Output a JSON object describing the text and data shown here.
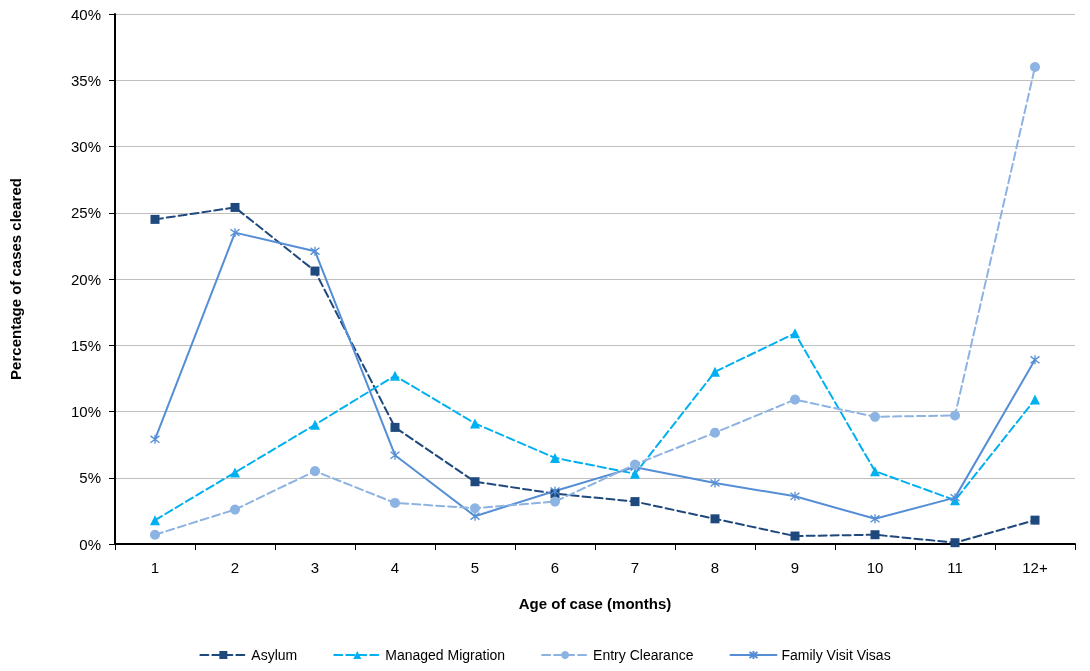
{
  "chart_data": {
    "type": "line",
    "xlabel": "Age of case (months)",
    "ylabel": "Percentage of cases cleared",
    "categories": [
      "1",
      "2",
      "3",
      "4",
      "5",
      "6",
      "7",
      "8",
      "9",
      "10",
      "11",
      "12+"
    ],
    "ylim": [
      0,
      40
    ],
    "yticks": [
      {
        "value": 0,
        "label": "0%"
      },
      {
        "value": 5,
        "label": "5%"
      },
      {
        "value": 10,
        "label": "10%"
      },
      {
        "value": 15,
        "label": "15%"
      },
      {
        "value": 20,
        "label": "20%"
      },
      {
        "value": 25,
        "label": "25%"
      },
      {
        "value": 30,
        "label": "30%"
      },
      {
        "value": 35,
        "label": "35%"
      },
      {
        "value": 40,
        "label": "40%"
      }
    ],
    "grid": "y",
    "legend": "bottom",
    "series": [
      {
        "name": "Asylum",
        "color": "#1f497d",
        "marker": "square",
        "line_style": "dashed",
        "values": [
          24.5,
          25.4,
          20.6,
          8.8,
          4.7,
          3.8,
          3.2,
          1.9,
          0.6,
          0.7,
          0.1,
          1.8
        ]
      },
      {
        "name": "Managed Migration",
        "color": "#00b0f0",
        "marker": "triangle",
        "line_style": "dashed",
        "values": [
          1.8,
          5.4,
          9.0,
          12.7,
          9.1,
          6.5,
          5.3,
          13.0,
          15.9,
          5.5,
          3.3,
          10.9
        ]
      },
      {
        "name": "Entry Clearance",
        "color": "#8db3e2",
        "marker": "circle",
        "line_style": "dashed",
        "values": [
          0.7,
          2.6,
          5.5,
          3.1,
          2.7,
          3.2,
          6.0,
          8.4,
          10.9,
          9.6,
          9.7,
          36.0
        ]
      },
      {
        "name": "Family Visit Visas",
        "color": "#558ed5",
        "marker": "cross",
        "line_style": "solid",
        "values": [
          7.9,
          23.5,
          22.1,
          6.7,
          2.1,
          4.0,
          5.8,
          4.6,
          3.6,
          1.9,
          3.5,
          13.9
        ]
      }
    ]
  }
}
